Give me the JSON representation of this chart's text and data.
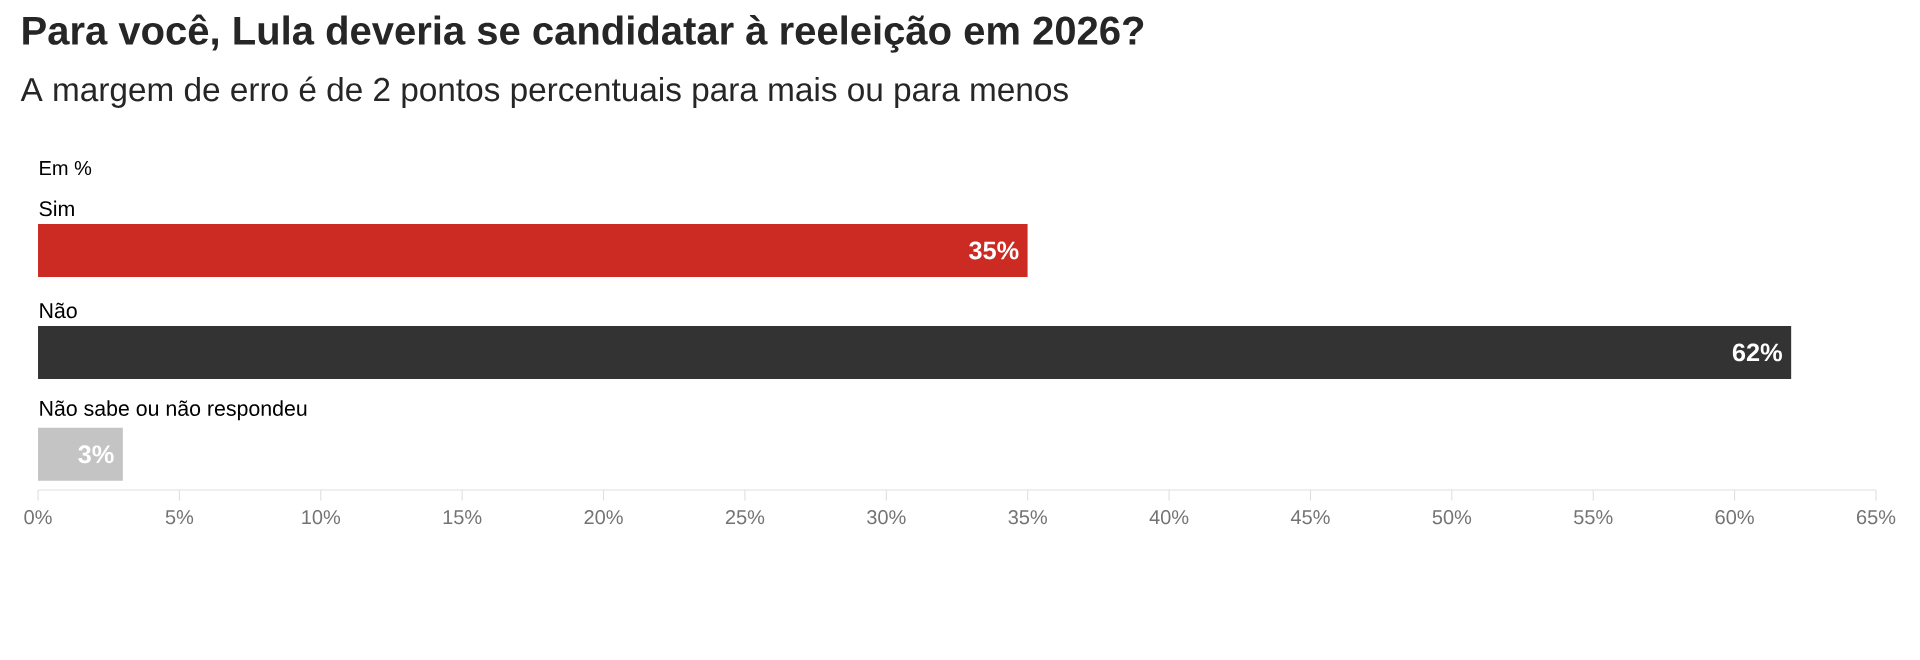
{
  "chart_data": {
    "type": "bar",
    "orientation": "horizontal",
    "title": "Para você, Lula deveria se candidatar à reeleição em 2026?",
    "subtitle": "A margem de erro é de 2 pontos percentuais para mais ou para menos",
    "annotations": [
      "Em %"
    ],
    "categories": [
      "Sim",
      "Não",
      "Não sabe ou não respondeu"
    ],
    "values": [
      35,
      62,
      3
    ],
    "colors": [
      "#cc2b24",
      "#333333",
      "#c4c4c4"
    ],
    "value_labels": [
      "35%",
      "62%",
      "3%"
    ],
    "xlim": [
      0,
      65
    ],
    "xticks": [
      {
        "value": 0,
        "label": "0%"
      },
      {
        "value": 5,
        "label": "5%"
      },
      {
        "value": 10,
        "label": "10%"
      },
      {
        "value": 15,
        "label": "15%"
      },
      {
        "value": 20,
        "label": "20%"
      },
      {
        "value": 25,
        "label": "25%"
      },
      {
        "value": 30,
        "label": "30%"
      },
      {
        "value": 35,
        "label": "35%"
      },
      {
        "value": 40,
        "label": "40%"
      },
      {
        "value": 45,
        "label": "45%"
      },
      {
        "value": 50,
        "label": "50%"
      },
      {
        "value": 55,
        "label": "55%"
      },
      {
        "value": 60,
        "label": "60%"
      },
      {
        "value": 65,
        "label": "65%"
      }
    ],
    "grid": false
  }
}
